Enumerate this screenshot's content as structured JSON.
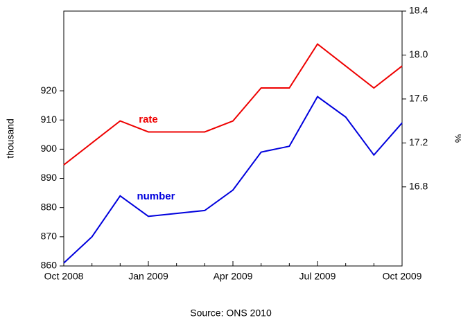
{
  "chart_data": {
    "type": "line",
    "categories": [
      "Oct 2008",
      null,
      null,
      "Jan 2009",
      null,
      null,
      "Apr 2009",
      null,
      null,
      "Jul 2009",
      null,
      null,
      "Oct 2009"
    ],
    "series": [
      {
        "name": "number",
        "color": "#0000dd",
        "values": [
          861,
          870,
          884,
          877,
          878,
          879,
          886,
          899,
          901,
          918,
          911,
          898,
          909
        ]
      },
      {
        "name": "rate",
        "color": "#ee0000",
        "axis": "y2",
        "values": [
          17.0,
          17.2,
          17.4,
          17.3,
          17.3,
          17.3,
          17.4,
          17.7,
          17.7,
          18.1,
          17.9,
          17.7,
          17.9
        ]
      }
    ],
    "ylabel": "thousand",
    "y2label": "%",
    "ylim": [
      860,
      947.3
    ],
    "yticks": [
      860,
      870,
      880,
      890,
      900,
      910,
      920
    ],
    "y2lim": [
      16.08,
      18.4
    ],
    "y2ticks": [
      16.8,
      17.2,
      17.6,
      {
        "value": 18.0,
        "label": "18.0"
      },
      18.4
    ],
    "source": "Source: ONS 2010"
  }
}
